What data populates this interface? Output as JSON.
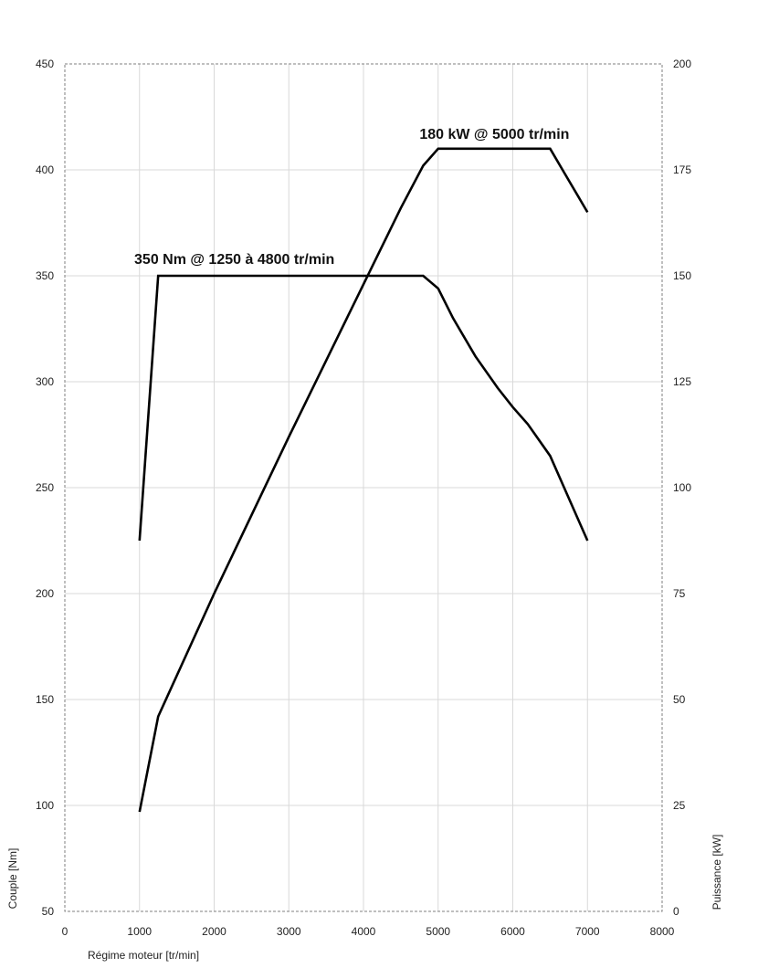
{
  "chart_data": {
    "type": "line",
    "title": "",
    "xlabel": "Régime moteur [tr/min]",
    "ylabel_left": "Couple [Nm]",
    "ylabel_right": "Puissance [kW]",
    "xlim": [
      0,
      8000
    ],
    "ylim_left": [
      50,
      450
    ],
    "ylim_right": [
      0,
      200
    ],
    "x_ticks": [
      "0",
      "1000",
      "2000",
      "3000",
      "4000",
      "5000",
      "6000",
      "7000",
      "8000"
    ],
    "y_left_ticks": [
      "50",
      "100",
      "150",
      "200",
      "250",
      "300",
      "350",
      "400",
      "450"
    ],
    "y_right_ticks": [
      "0",
      "25",
      "50",
      "75",
      "100",
      "125",
      "150",
      "175",
      "200"
    ],
    "grid": true,
    "line_color": "#000000",
    "grid_color": "#d9d9d9",
    "series": [
      {
        "axis": "left",
        "points": [
          [
            1000,
            225
          ],
          [
            1250,
            350
          ],
          [
            4800,
            350
          ],
          [
            5000,
            344
          ],
          [
            5200,
            330
          ],
          [
            5500,
            312
          ],
          [
            5800,
            297
          ],
          [
            6000,
            288
          ],
          [
            6200,
            280
          ],
          [
            6500,
            265
          ],
          [
            7000,
            225
          ]
        ]
      },
      {
        "axis": "right",
        "points": [
          [
            1000,
            23.5
          ],
          [
            1250,
            46
          ],
          [
            2000,
            75
          ],
          [
            3000,
            112
          ],
          [
            4000,
            148
          ],
          [
            4500,
            166
          ],
          [
            4800,
            176
          ],
          [
            5000,
            180
          ],
          [
            6500,
            180
          ],
          [
            6700,
            174
          ],
          [
            7000,
            165
          ]
        ]
      }
    ],
    "annotations": [
      {
        "text": "180 kW @ 5000 tr/min",
        "x": 4750,
        "y_left": 412
      },
      {
        "text": "350 Nm @ 1250 à 4800 tr/min",
        "x": 930,
        "y_left": 353
      }
    ]
  }
}
